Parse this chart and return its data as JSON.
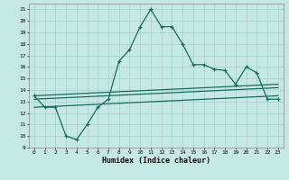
{
  "xlabel": "Humidex (Indice chaleur)",
  "bg_color": "#c5e8e2",
  "grid_color": "#a8d5ce",
  "line_color": "#1a6b5a",
  "xlim_min": -0.5,
  "xlim_max": 23.5,
  "ylim_min": 9,
  "ylim_max": 21.5,
  "xticks": [
    0,
    1,
    2,
    3,
    4,
    5,
    6,
    7,
    8,
    9,
    10,
    11,
    12,
    13,
    14,
    15,
    16,
    17,
    18,
    19,
    20,
    21,
    22,
    23
  ],
  "yticks": [
    9,
    10,
    11,
    12,
    13,
    14,
    15,
    16,
    17,
    18,
    19,
    20,
    21
  ],
  "main_curve": {
    "x": [
      0,
      1,
      2,
      3,
      4,
      5,
      6,
      7,
      8,
      9,
      10,
      11,
      12,
      13,
      14,
      15,
      16,
      17,
      18,
      19,
      20,
      21,
      22,
      23
    ],
    "y": [
      13.5,
      12.5,
      12.5,
      10.0,
      9.7,
      11.0,
      12.5,
      13.2,
      16.5,
      17.5,
      19.5,
      21.0,
      19.5,
      19.5,
      18.0,
      16.2,
      16.2,
      15.8,
      15.7,
      14.5,
      16.0,
      15.5,
      13.2,
      13.2
    ]
  },
  "flat_lines": [
    {
      "x": [
        0,
        23
      ],
      "y": [
        13.5,
        14.5
      ]
    },
    {
      "x": [
        0,
        23
      ],
      "y": [
        13.2,
        14.2
      ]
    },
    {
      "x": [
        0,
        23
      ],
      "y": [
        12.5,
        13.5
      ]
    }
  ]
}
